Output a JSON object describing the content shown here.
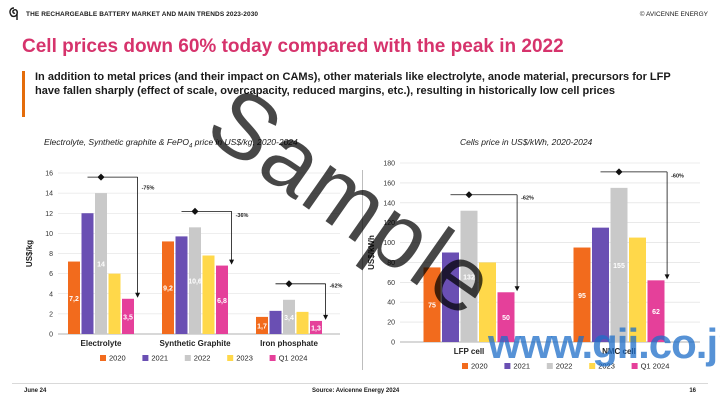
{
  "header": {
    "report_title": "THE RECHARGEABLE BATTERY MARKET AND MAIN TRENDS 2023-2030",
    "company": "© AVICENNE ENERGY"
  },
  "headline": "Cell prices down 60% today compared with the peak in 2022",
  "intro": "In addition to metal prices (and their impact on CAMs), other materials like electrolyte, anode material, precursors for LFP have fallen sharply (effect of scale, overcapacity, reduced margins, etc.), resulting in historically low cell prices",
  "colors": {
    "headline": "#d6336c",
    "accent": "#e46c0a",
    "s2020": "#f26b1d",
    "s2021": "#6a4fb3",
    "s2022": "#c9c9c9",
    "s2023": "#ffd84a",
    "s2024": "#e5409a"
  },
  "chart_data": [
    {
      "type": "bar",
      "title": "Electrolyte, Synthetic graphite & FePO",
      "title_sub": "4",
      "title_tail": " price in US$/kg, 2020-2024",
      "ylabel": "US$/kg",
      "ylim": [
        0,
        16
      ],
      "yticks": [
        0,
        2,
        4,
        6,
        8,
        10,
        12,
        14,
        16
      ],
      "grid": true,
      "categories": [
        "Electrolyte",
        "Synthetic  Graphite",
        "Iron phosphate"
      ],
      "series": [
        {
          "name": "2020",
          "values": [
            7.2,
            9.2,
            1.7
          ]
        },
        {
          "name": "2021",
          "values": [
            12.0,
            9.7,
            2.3
          ]
        },
        {
          "name": "2022",
          "values": [
            14.0,
            10.6,
            3.4
          ]
        },
        {
          "name": "2023",
          "values": [
            6.0,
            7.8,
            2.2
          ]
        },
        {
          "name": "Q1 2024",
          "values": [
            3.5,
            6.8,
            1.3
          ]
        }
      ],
      "data_labels": [
        [
          "7,2",
          "",
          "14",
          "",
          "3,5"
        ],
        [
          "9,2",
          "",
          "10,6",
          "",
          "6,8"
        ],
        [
          "1,7",
          "",
          "3,4",
          "",
          "1,3"
        ]
      ],
      "annotations": [
        "-75%",
        "-36%",
        "-62%"
      ],
      "legend": "bottom"
    },
    {
      "type": "bar",
      "title": "Cells price in US$/kWh, 2020-2024",
      "ylabel": "US$/kWh",
      "ylim": [
        0,
        180
      ],
      "yticks": [
        0,
        20,
        40,
        60,
        80,
        100,
        120,
        140,
        160,
        180
      ],
      "grid": true,
      "categories": [
        "LFP cell",
        "NMC cell"
      ],
      "series": [
        {
          "name": "2020",
          "values": [
            75,
            95
          ]
        },
        {
          "name": "2021",
          "values": [
            90,
            115
          ]
        },
        {
          "name": "2022",
          "values": [
            132,
            155
          ]
        },
        {
          "name": "2023",
          "values": [
            80,
            105
          ]
        },
        {
          "name": "Q1 2024",
          "values": [
            50,
            62
          ]
        }
      ],
      "data_labels": [
        [
          "75",
          "",
          "132",
          "",
          "50"
        ],
        [
          "95",
          "",
          "155",
          "",
          "62"
        ]
      ],
      "annotations": [
        "-62%",
        "-60%"
      ],
      "legend": "bottom"
    }
  ],
  "footer": {
    "date": "June 24",
    "source": "Source: Avicenne Energy 2024",
    "page": "16"
  },
  "watermark": "Sample",
  "watermark_url": "www.gii.co.jp"
}
